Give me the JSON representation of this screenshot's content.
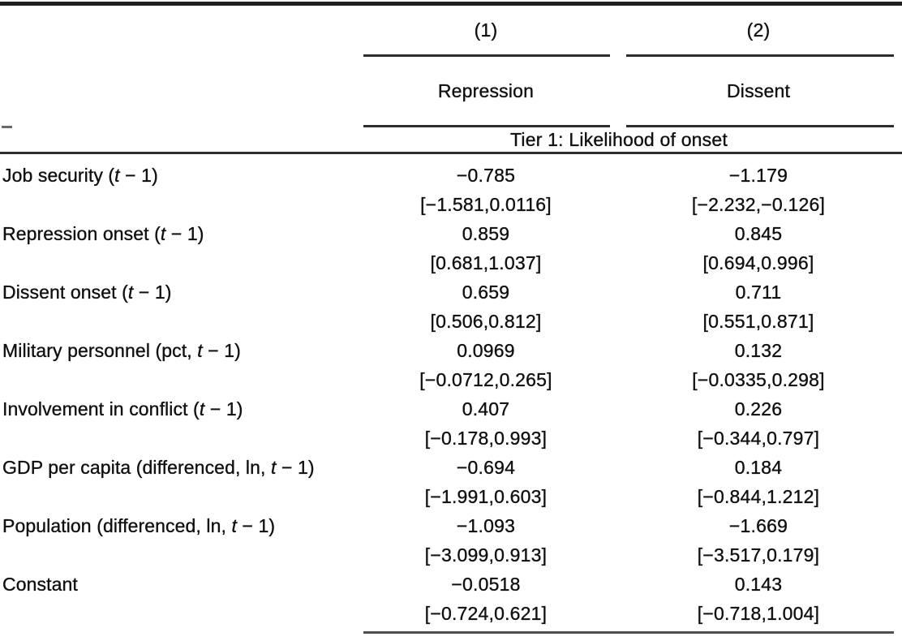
{
  "page": {
    "background_color": "#ffffff",
    "text_color": "#101010",
    "rule_color": "#2d2d2d"
  },
  "table": {
    "model_headers": [
      {
        "label": "(1)"
      },
      {
        "label": "(2)"
      }
    ],
    "column_headers": [
      {
        "label": "Repression"
      },
      {
        "label": "Dissent"
      }
    ],
    "section_header": "Tier 1: Likelihood of onset",
    "rows": [
      {
        "label": {
          "pre": "Job security (",
          "var": "t",
          "post": " − 1)"
        },
        "cols": [
          {
            "coef": "−0.785",
            "ci": "[−1.581,0.0116]"
          },
          {
            "coef": "−1.179",
            "ci": "[−2.232,−0.126]"
          }
        ]
      },
      {
        "label": {
          "pre": "Repression onset (",
          "var": "t",
          "post": " − 1)"
        },
        "cols": [
          {
            "coef": "0.859",
            "ci": "[0.681,1.037]"
          },
          {
            "coef": "0.845",
            "ci": "[0.694,0.996]"
          }
        ]
      },
      {
        "label": {
          "pre": "Dissent onset (",
          "var": "t",
          "post": " − 1)"
        },
        "cols": [
          {
            "coef": "0.659",
            "ci": "[0.506,0.812]"
          },
          {
            "coef": "0.711",
            "ci": "[0.551,0.871]"
          }
        ]
      },
      {
        "label": {
          "pre": "Military personnel (pct, ",
          "var": "t",
          "post": " − 1)"
        },
        "cols": [
          {
            "coef": "0.0969",
            "ci": "[−0.0712,0.265]"
          },
          {
            "coef": "0.132",
            "ci": "[−0.0335,0.298]"
          }
        ]
      },
      {
        "label": {
          "pre": "Involvement in conflict (",
          "var": "t",
          "post": " − 1)"
        },
        "cols": [
          {
            "coef": "0.407",
            "ci": "[−0.178,0.993]"
          },
          {
            "coef": "0.226",
            "ci": "[−0.344,0.797]"
          }
        ]
      },
      {
        "label": {
          "pre": "GDP per capita (differenced, ln, ",
          "var": "t",
          "post": " − 1)"
        },
        "cols": [
          {
            "coef": "−0.694",
            "ci": "[−1.991,0.603]"
          },
          {
            "coef": "0.184",
            "ci": "[−0.844,1.212]"
          }
        ]
      },
      {
        "label": {
          "pre": "Population (differenced, ln, ",
          "var": "t",
          "post": " − 1)"
        },
        "cols": [
          {
            "coef": "−1.093",
            "ci": "[−3.099,0.913]"
          },
          {
            "coef": "−1.669",
            "ci": "[−3.517,0.179]"
          }
        ]
      },
      {
        "label": {
          "pre": "Constant",
          "var": "",
          "post": ""
        },
        "cols": [
          {
            "coef": "−0.0518",
            "ci": "[−0.724,0.621]"
          },
          {
            "coef": "0.143",
            "ci": "[−0.718,1.004]"
          }
        ]
      }
    ]
  }
}
